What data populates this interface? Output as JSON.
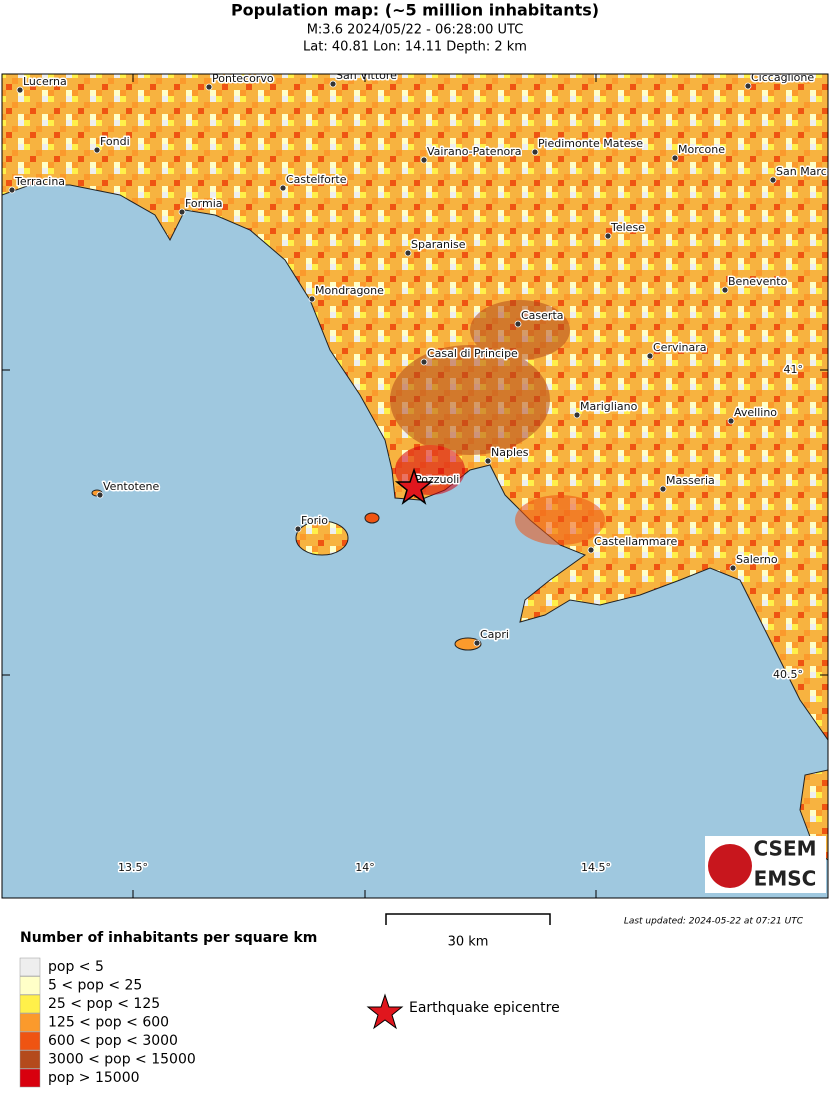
{
  "header": {
    "title": "Population map: (~5 million inhabitants)",
    "line1": "M:3.6 2024/05/22 - 06:28:00 UTC",
    "line2": "Lat: 40.81 Lon: 14.11 Depth: 2 km"
  },
  "map": {
    "cities": [
      "Lucerna",
      "Pontecorvo",
      "San Vittore",
      "Ciccaglione",
      "Fondi",
      "Vairano-Patenora",
      "Piedimonte Matese",
      "Morcone",
      "Terracina",
      "Castelforte",
      "San Marco",
      "Formia",
      "Telese",
      "Sparanise",
      "Benevento",
      "Mondragone",
      "Caserta",
      "Casal di Principe",
      "Cervinara",
      "Marigliano",
      "Avellino",
      "Naples",
      "Ventotene",
      "Masseria",
      "Forio",
      "Castellammare",
      "Salerno",
      "Capri",
      "Pozzuoli"
    ],
    "lat_labels": [
      "41°",
      "40.5°"
    ],
    "lon_labels": [
      "13.5°",
      "14°",
      "14.5°"
    ],
    "scale": "30 km",
    "updated": "Last updated: 2024-05-22 at 07:21 UTC",
    "logo": [
      "CSEM",
      "EMSC"
    ]
  },
  "legend": {
    "title": "Number of inhabitants per square km",
    "items": [
      {
        "label": "pop < 5",
        "color": "#eeeeee"
      },
      {
        "label": "5 < pop < 25",
        "color": "#ffffc8"
      },
      {
        "label": "25 < pop < 125",
        "color": "#fff04a"
      },
      {
        "label": "125 < pop < 600",
        "color": "#fb9a2c"
      },
      {
        "label": "600 < pop < 3000",
        "color": "#ef5412"
      },
      {
        "label": "3000 < pop < 15000",
        "color": "#b44a1c"
      },
      {
        "label": "pop > 15000",
        "color": "#d8000e"
      }
    ],
    "epicentre": "Earthquake epicentre"
  }
}
